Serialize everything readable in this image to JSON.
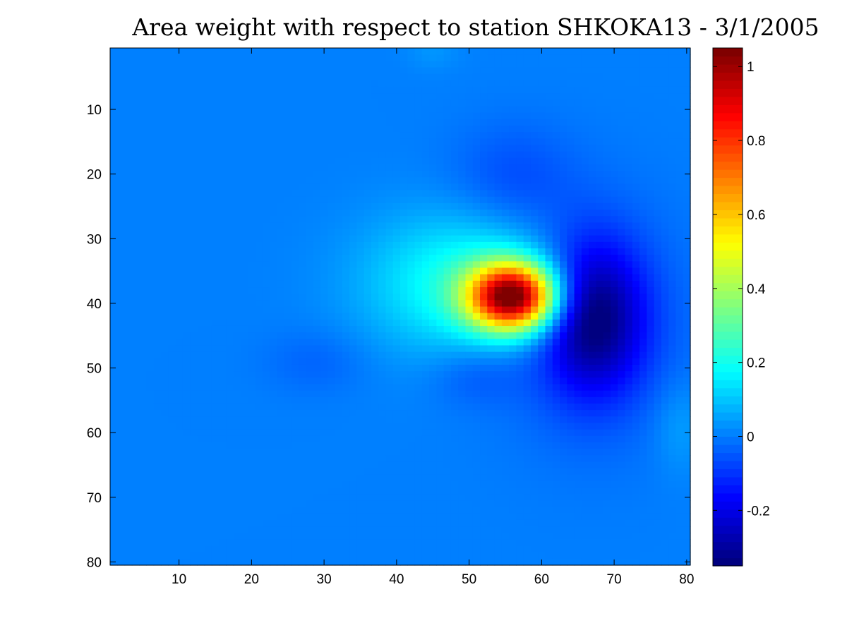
{
  "chart_data": {
    "type": "heatmap",
    "title": "Area weight with respect to station SHKOKA13 - 3/1/2005",
    "xlabel": "",
    "ylabel": "",
    "x_range": [
      1,
      80
    ],
    "y_range": [
      1,
      80
    ],
    "y_direction": "reversed",
    "x_ticks": [
      10,
      20,
      30,
      40,
      50,
      60,
      70,
      80
    ],
    "y_ticks": [
      10,
      20,
      30,
      40,
      50,
      60,
      70,
      80
    ],
    "x_tick_labels": [
      "10",
      "20",
      "30",
      "40",
      "50",
      "60",
      "70",
      "80"
    ],
    "y_tick_labels": [
      "10",
      "20",
      "30",
      "40",
      "50",
      "60",
      "70",
      "80"
    ],
    "colorbar": {
      "colormap": "jet",
      "range": [
        -0.35,
        1.05
      ],
      "ticks": [
        -0.2,
        0,
        0.2,
        0.4,
        0.6,
        0.8,
        1
      ],
      "tick_labels": [
        "-0.2",
        "0",
        "0.2",
        "0.4",
        "0.6",
        "0.8",
        "1"
      ],
      "placement": "right"
    },
    "background_value": 0.0,
    "features": [
      {
        "kind": "max",
        "x": 56,
        "y": 39,
        "value": 1.0,
        "sx": 4.2,
        "sy": 3.6
      },
      {
        "kind": "positive-halo",
        "x": 50,
        "y": 37,
        "value": 0.22,
        "sx": 9.5,
        "sy": 7.5
      },
      {
        "kind": "min",
        "x": 67,
        "y": 42,
        "value": -0.33,
        "sx": 4.8,
        "sy": 8.0
      },
      {
        "kind": "negative-halo",
        "x": 67,
        "y": 43,
        "value": -0.08,
        "sx": 9.0,
        "sy": 13.0
      },
      {
        "kind": "negative",
        "x": 56,
        "y": 21,
        "value": -0.07,
        "sx": 6.0,
        "sy": 6.0
      },
      {
        "kind": "negative",
        "x": 51,
        "y": 51,
        "value": -0.06,
        "sx": 4.5,
        "sy": 3.5
      },
      {
        "kind": "negative",
        "x": 29,
        "y": 49,
        "value": -0.04,
        "sx": 5.0,
        "sy": 3.5
      },
      {
        "kind": "positive",
        "x": 79,
        "y": 59,
        "value": 0.05,
        "sx": 2.5,
        "sy": 5.0
      },
      {
        "kind": "positive",
        "x": 45,
        "y": 1,
        "value": 0.03,
        "sx": 2.5,
        "sy": 2.0
      }
    ]
  }
}
